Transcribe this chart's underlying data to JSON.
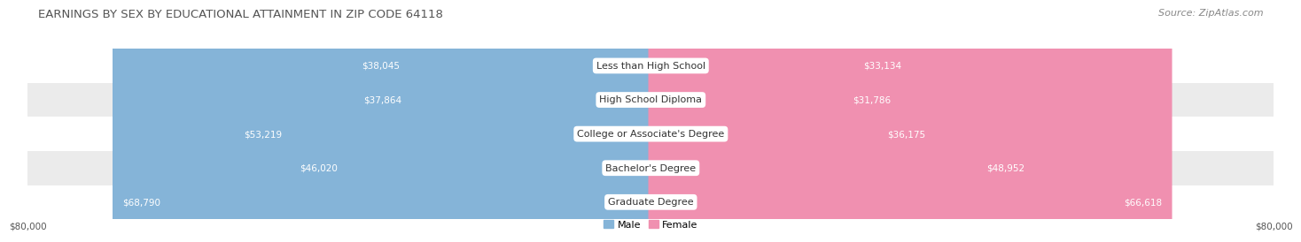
{
  "title": "EARNINGS BY SEX BY EDUCATIONAL ATTAINMENT IN ZIP CODE 64118",
  "source": "Source: ZipAtlas.com",
  "categories": [
    "Less than High School",
    "High School Diploma",
    "College or Associate's Degree",
    "Bachelor's Degree",
    "Graduate Degree"
  ],
  "male_values": [
    38045,
    37864,
    53219,
    46020,
    68790
  ],
  "female_values": [
    33134,
    31786,
    36175,
    48952,
    66618
  ],
  "male_color": "#85b4d8",
  "female_color": "#f090b0",
  "male_label": "Male",
  "female_label": "Female",
  "axis_max": 80000,
  "bg_color": "#ffffff",
  "row_colors": [
    "#ffffff",
    "#ebebeb"
  ],
  "title_fontsize": 9.5,
  "source_fontsize": 8,
  "cat_fontsize": 8,
  "value_fontsize": 7.5,
  "axis_label_fontsize": 7.5,
  "bar_height": 0.68
}
